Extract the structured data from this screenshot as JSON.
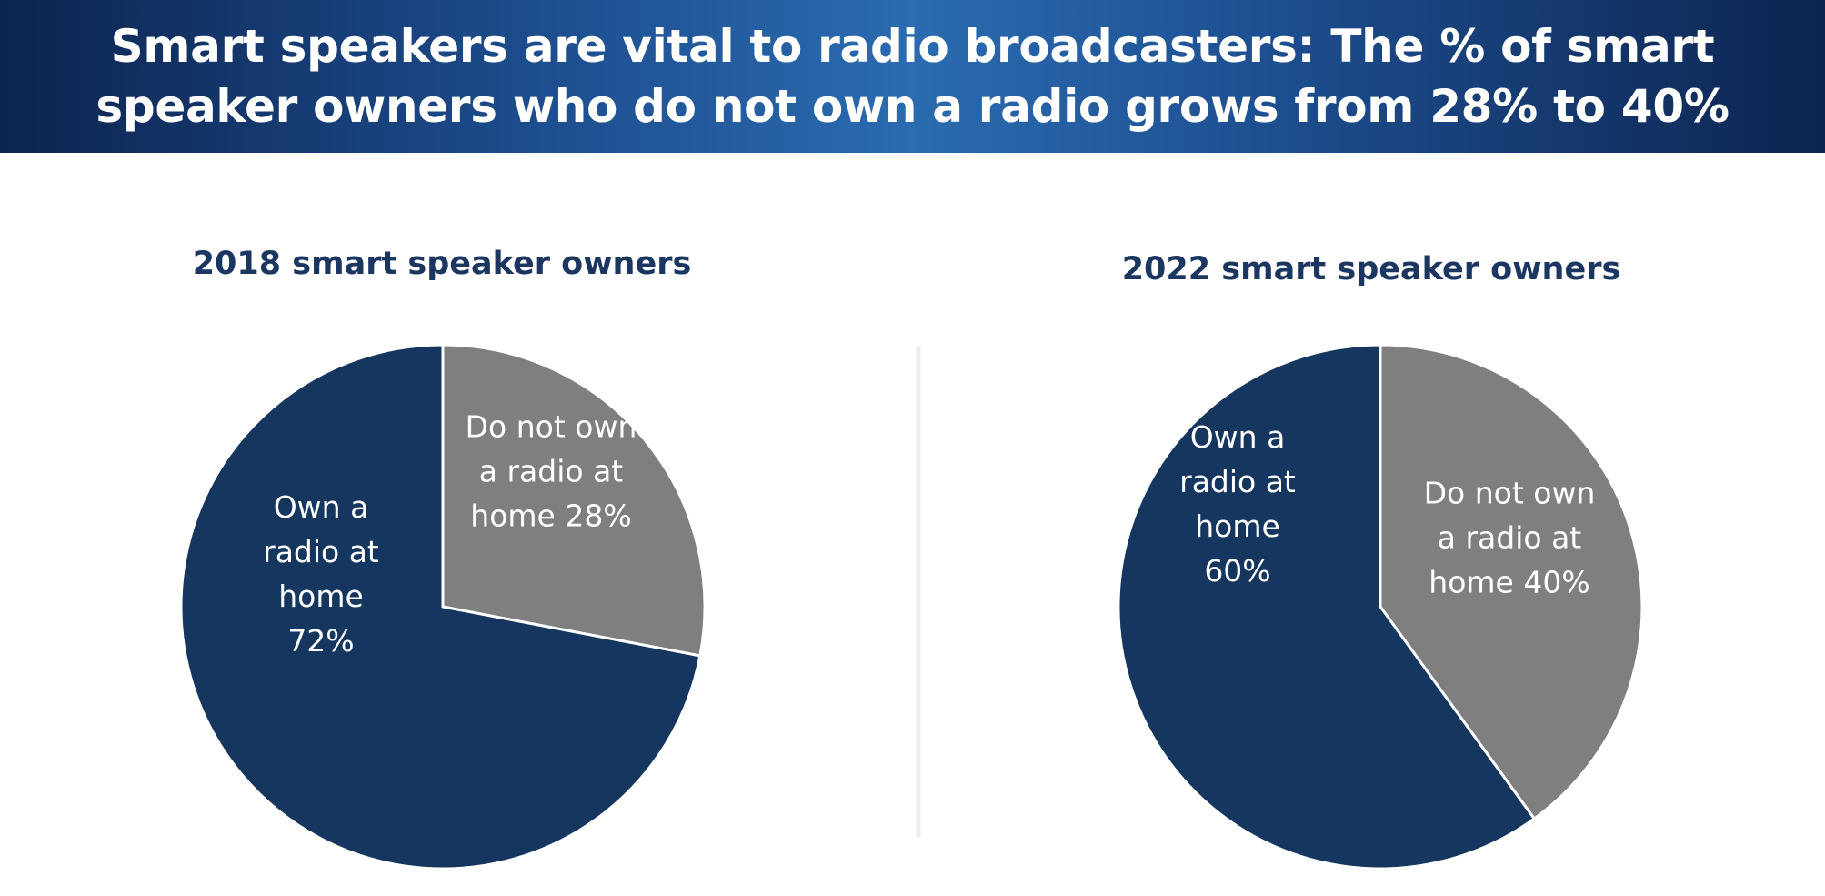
{
  "header": {
    "title": "Smart speakers are vital to radio broadcasters: The % of smart speaker owners who do not own a radio grows from 28% to 40%"
  },
  "colors": {
    "own_radio": "#15365f",
    "not_own_radio": "#7f7f7f",
    "subtitle": "#1b3660"
  },
  "chart_data": [
    {
      "type": "pie",
      "title": "2018 smart speaker owners",
      "slices": [
        {
          "label": [
            "Do not own",
            "a radio at",
            "home 28%"
          ],
          "value": 28,
          "color": "#7f7f7f"
        },
        {
          "label": [
            "Own a",
            "radio at",
            "home",
            "72%"
          ],
          "value": 72,
          "color": "#15365f"
        }
      ]
    },
    {
      "type": "pie",
      "title": "2022 smart speaker owners",
      "slices": [
        {
          "label": [
            "Do not own",
            "a radio at",
            "home 40%"
          ],
          "value": 40,
          "color": "#7f7f7f"
        },
        {
          "label": [
            "Own a",
            "radio at",
            "home",
            "60%"
          ],
          "value": 60,
          "color": "#15365f"
        }
      ]
    }
  ]
}
